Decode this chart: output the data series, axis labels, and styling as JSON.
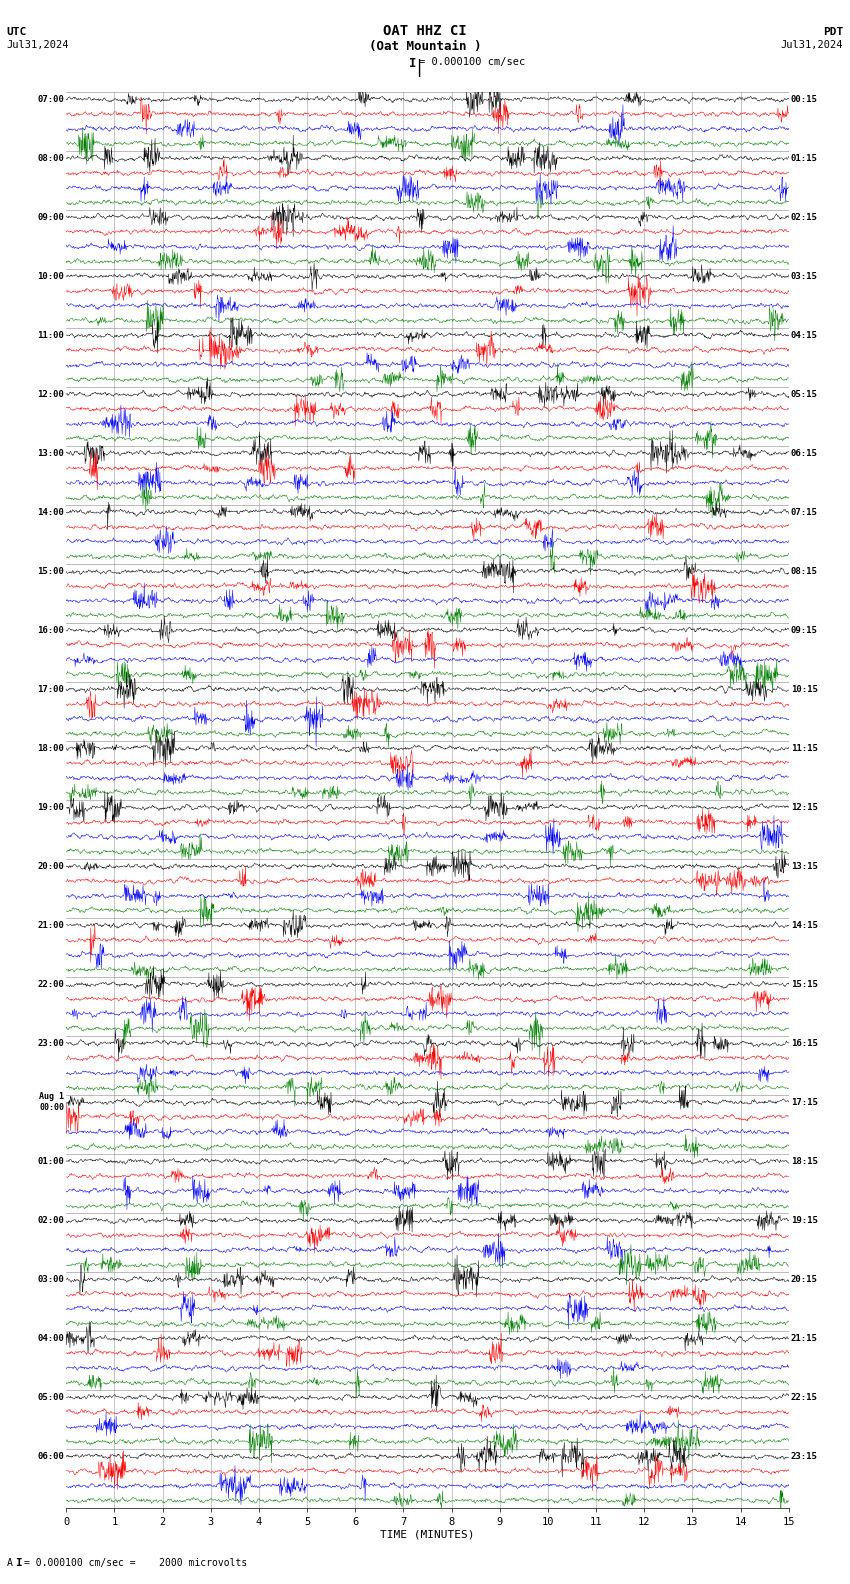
{
  "title_line1": "OAT HHZ CI",
  "title_line2": "(Oat Mountain )",
  "scale_text": "= 0.000100 cm/sec",
  "utc_label": "UTC",
  "pdt_label": "PDT",
  "date_left": "Jul31,2024",
  "date_right": "Jul31,2024",
  "xlabel": "TIME (MINUTES)",
  "footer_text": "= 0.000100 cm/sec =    2000 microvolts",
  "footer_prefix": "A",
  "left_times": [
    "07:00",
    "08:00",
    "09:00",
    "10:00",
    "11:00",
    "12:00",
    "13:00",
    "14:00",
    "15:00",
    "16:00",
    "17:00",
    "18:00",
    "19:00",
    "20:00",
    "21:00",
    "22:00",
    "23:00",
    "Aug 1\n00:00",
    "01:00",
    "02:00",
    "03:00",
    "04:00",
    "05:00",
    "06:00"
  ],
  "right_times": [
    "00:15",
    "01:15",
    "02:15",
    "03:15",
    "04:15",
    "05:15",
    "06:15",
    "07:15",
    "08:15",
    "09:15",
    "10:15",
    "11:15",
    "12:15",
    "13:15",
    "14:15",
    "15:15",
    "16:15",
    "17:15",
    "18:15",
    "19:15",
    "20:15",
    "21:15",
    "22:15",
    "23:15"
  ],
  "n_rows": 24,
  "traces_per_row": 4,
  "colors": [
    "black",
    "red",
    "blue",
    "green"
  ],
  "bg_color": "#ffffff",
  "minutes_per_row": 15,
  "xticks": [
    0,
    1,
    2,
    3,
    4,
    5,
    6,
    7,
    8,
    9,
    10,
    11,
    12,
    13,
    14,
    15
  ],
  "xticklabels": [
    "0",
    "1",
    "2",
    "3",
    "4",
    "5",
    "6",
    "7",
    "8",
    "9",
    "10",
    "11",
    "12",
    "13",
    "14",
    "15"
  ],
  "figwidth": 8.5,
  "figheight": 15.84
}
